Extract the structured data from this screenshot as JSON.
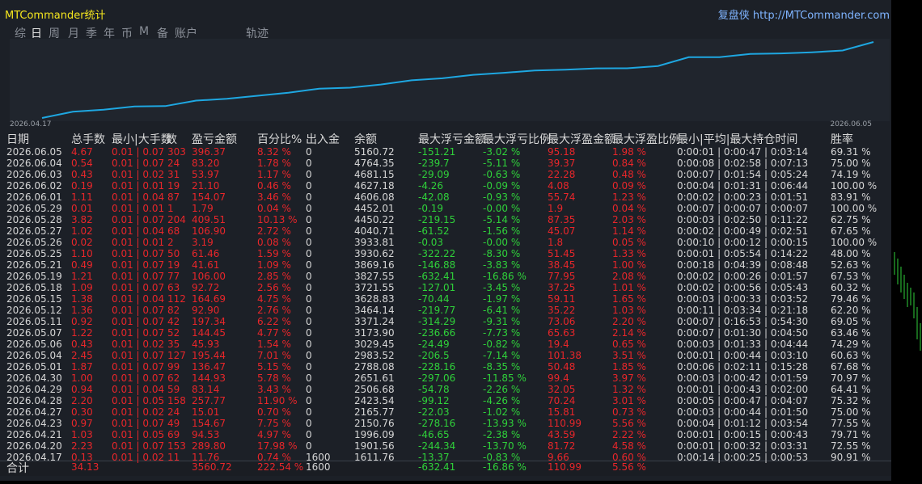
{
  "header": {
    "title": "MTCommander统计",
    "brand": "复盘侠 http://MTCommander.com",
    "tabs": [
      "综",
      "日",
      "周",
      "月",
      "季",
      "年",
      "币",
      "M",
      "备",
      "账户",
      "轨迹"
    ],
    "active_tab": 1
  },
  "curve": {
    "start_label": "2026.04.17",
    "end_label": "2026.06.05",
    "color": "#1ea7e1"
  },
  "table": {
    "columns": [
      "日期",
      "总手数",
      "最小|大手数",
      "数",
      "盈亏金额",
      "百分比%",
      "出入金",
      "余额",
      "最大浮亏金额",
      "最大浮亏比例",
      "最大浮盈金额",
      "最大浮盈比例",
      "最小|平均|最大持仓时间",
      "胜率"
    ],
    "rows": [
      [
        "2026.06.05",
        "4.67",
        "0.01 | 0.07",
        "303",
        "396.37",
        "8.32 %",
        "0",
        "5160.72",
        "-151.21",
        "-3.02 %",
        "95.18",
        "1.98 %",
        "0:00:01 | 0:00:47 | 0:03:14",
        "69.31 %"
      ],
      [
        "2026.06.04",
        "0.54",
        "0.01 | 0.07",
        "24",
        "83.20",
        "1.78 %",
        "0",
        "4764.35",
        "-239.7",
        "-5.11 %",
        "39.37",
        "0.84 %",
        "0:00:08 | 0:02:58 | 0:07:13",
        "75.00 %"
      ],
      [
        "2026.06.03",
        "0.43",
        "0.01 | 0.02",
        "31",
        "53.97",
        "1.17 %",
        "0",
        "4681.15",
        "-29.09",
        "-0.63 %",
        "22.28",
        "0.48 %",
        "0:00:07 | 0:01:54 | 0:05:24",
        "74.19 %"
      ],
      [
        "2026.06.02",
        "0.19",
        "0.01 | 0.01",
        "19",
        "21.10",
        "0.46 %",
        "0",
        "4627.18",
        "-4.26",
        "-0.09 %",
        "4.08",
        "0.09 %",
        "0:00:04 | 0:01:31 | 0:06:44",
        "100.00 %"
      ],
      [
        "2026.06.01",
        "1.11",
        "0.01 | 0.04",
        "87",
        "154.07",
        "3.46 %",
        "0",
        "4606.08",
        "-42.08",
        "-0.93 %",
        "55.74",
        "1.23 %",
        "0:00:02 | 0:00:23 | 0:01:51",
        "83.91 %"
      ],
      [
        "2026.05.29",
        "0.01",
        "0.01 | 0.01",
        "1",
        "1.79",
        "0.04 %",
        "0",
        "4452.01",
        "-0.19",
        "-0.00 %",
        "1.9",
        "0.04 %",
        "0:00:07 | 0:00:07 | 0:00:07",
        "100.00 %"
      ],
      [
        "2026.05.28",
        "3.82",
        "0.01 | 0.07",
        "204",
        "409.51",
        "10.13 %",
        "0",
        "4450.22",
        "-219.15",
        "-5.14 %",
        "87.35",
        "2.03 %",
        "0:00:03 | 0:02:50 | 0:11:22",
        "62.75 %"
      ],
      [
        "2026.05.27",
        "1.02",
        "0.01 | 0.04",
        "68",
        "106.90",
        "2.72 %",
        "0",
        "4040.71",
        "-61.52",
        "-1.56 %",
        "45.07",
        "1.14 %",
        "0:00:02 | 0:00:49 | 0:02:51",
        "67.65 %"
      ],
      [
        "2026.05.26",
        "0.02",
        "0.01 | 0.01",
        "2",
        "3.19",
        "0.08 %",
        "0",
        "3933.81",
        "-0.03",
        "-0.00 %",
        "1.8",
        "0.05 %",
        "0:00:10 | 0:00:12 | 0:00:15",
        "100.00 %"
      ],
      [
        "2026.05.25",
        "1.10",
        "0.01 | 0.07",
        "50",
        "61.46",
        "1.59 %",
        "0",
        "3930.62",
        "-322.22",
        "-8.30 %",
        "51.45",
        "1.33 %",
        "0:00:01 | 0:05:54 | 0:14:22",
        "48.00 %"
      ],
      [
        "2026.05.21",
        "0.49",
        "0.01 | 0.07",
        "19",
        "41.61",
        "1.09 %",
        "0",
        "3869.16",
        "-146.88",
        "-3.83 %",
        "38.45",
        "1.00 %",
        "0:00:18 | 0:04:39 | 0:08:48",
        "52.63 %"
      ],
      [
        "2026.05.19",
        "1.21",
        "0.01 | 0.07",
        "77",
        "106.00",
        "2.85 %",
        "0",
        "3827.55",
        "-632.41",
        "-16.86 %",
        "77.95",
        "2.08 %",
        "0:00:02 | 0:00:26 | 0:01:57",
        "67.53 %"
      ],
      [
        "2026.05.18",
        "1.09",
        "0.01 | 0.07",
        "63",
        "92.72",
        "2.56 %",
        "0",
        "3721.55",
        "-127.01",
        "-3.45 %",
        "37.25",
        "1.01 %",
        "0:00:02 | 0:00:56 | 0:05:43",
        "60.32 %"
      ],
      [
        "2026.05.15",
        "1.38",
        "0.01 | 0.04",
        "112",
        "164.69",
        "4.75 %",
        "0",
        "3628.83",
        "-70.44",
        "-1.97 %",
        "59.11",
        "1.65 %",
        "0:00:03 | 0:00:33 | 0:03:52",
        "79.46 %"
      ],
      [
        "2026.05.12",
        "1.36",
        "0.01 | 0.07",
        "82",
        "92.90",
        "2.76 %",
        "0",
        "3464.14",
        "-219.77",
        "-6.41 %",
        "35.22",
        "1.03 %",
        "0:00:11 | 0:03:34 | 0:21:18",
        "62.20 %"
      ],
      [
        "2026.05.11",
        "0.92",
        "0.01 | 0.07",
        "42",
        "197.34",
        "6.22 %",
        "0",
        "3371.24",
        "-314.29",
        "-9.31 %",
        "73.06",
        "2.20 %",
        "0:00:07 | 0:16:53 | 0:54:30",
        "69.05 %"
      ],
      [
        "2026.05.07",
        "1.22",
        "0.01 | 0.07",
        "52",
        "144.45",
        "4.77 %",
        "0",
        "3173.90",
        "-236.66",
        "-7.73 %",
        "65.63",
        "2.14 %",
        "0:00:07 | 0:01:30 | 0:04:50",
        "63.46 %"
      ],
      [
        "2026.05.06",
        "0.43",
        "0.01 | 0.02",
        "35",
        "45.93",
        "1.54 %",
        "0",
        "3029.45",
        "-24.49",
        "-0.82 %",
        "19.4",
        "0.65 %",
        "0:00:03 | 0:01:33 | 0:04:44",
        "74.29 %"
      ],
      [
        "2026.05.04",
        "2.45",
        "0.01 | 0.07",
        "127",
        "195.44",
        "7.01 %",
        "0",
        "2983.52",
        "-206.5",
        "-7.14 %",
        "101.38",
        "3.51 %",
        "0:00:01 | 0:00:44 | 0:03:10",
        "60.63 %"
      ],
      [
        "2026.05.01",
        "1.87",
        "0.01 | 0.07",
        "99",
        "136.47",
        "5.15 %",
        "0",
        "2788.08",
        "-228.16",
        "-8.35 %",
        "50.48",
        "1.85 %",
        "0:00:06 | 0:02:11 | 0:15:28",
        "67.68 %"
      ],
      [
        "2026.04.30",
        "1.00",
        "0.01 | 0.07",
        "62",
        "144.93",
        "5.78 %",
        "0",
        "2651.61",
        "-297.06",
        "-11.85 %",
        "99.4",
        "3.97 %",
        "0:00:03 | 0:00:42 | 0:01:59",
        "70.97 %"
      ],
      [
        "2026.04.29",
        "0.94",
        "0.01 | 0.04",
        "59",
        "83.14",
        "3.43 %",
        "0",
        "2506.68",
        "-54.78",
        "-2.26 %",
        "32.05",
        "1.32 %",
        "0:00:01 | 0:00:43 | 0:02:00",
        "64.41 %"
      ],
      [
        "2026.04.28",
        "2.20",
        "0.01 | 0.05",
        "158",
        "257.77",
        "11.90 %",
        "0",
        "2423.54",
        "-99.12",
        "-4.26 %",
        "70.24",
        "3.01 %",
        "0:00:05 | 0:00:47 | 0:04:07",
        "75.32 %"
      ],
      [
        "2026.04.27",
        "0.30",
        "0.01 | 0.02",
        "24",
        "15.01",
        "0.70 %",
        "0",
        "2165.77",
        "-22.03",
        "-1.02 %",
        "15.81",
        "0.73 %",
        "0:00:03 | 0:00:44 | 0:01:50",
        "75.00 %"
      ],
      [
        "2026.04.23",
        "0.97",
        "0.01 | 0.07",
        "49",
        "154.67",
        "7.75 %",
        "0",
        "2150.76",
        "-278.16",
        "-13.93 %",
        "110.99",
        "5.56 %",
        "0:00:04 | 0:01:12 | 0:03:54",
        "77.55 %"
      ],
      [
        "2026.04.21",
        "1.03",
        "0.01 | 0.05",
        "69",
        "94.53",
        "4.97 %",
        "0",
        "1996.09",
        "-46.65",
        "-2.38 %",
        "43.59",
        "2.22 %",
        "0:00:01 | 0:00:15 | 0:00:43",
        "79.71 %"
      ],
      [
        "2026.04.20",
        "2.23",
        "0.01 | 0.07",
        "153",
        "289.80",
        "17.98 %",
        "0",
        "1901.56",
        "-244.34",
        "-13.70 %",
        "81.72",
        "4.58 %",
        "0:00:01 | 0:00:32 | 0:03:31",
        "72.55 %"
      ],
      [
        "2026.04.17",
        "0.13",
        "0.01 | 0.02",
        "11",
        "11.76",
        "0.74 %",
        "1600",
        "1611.76",
        "-13.37",
        "-0.83 %",
        "9.66",
        "0.60 %",
        "0:00:14 | 0:00:25 | 0:00:53",
        "90.91 %"
      ]
    ],
    "total": {
      "label": "合计",
      "lots": "34.13",
      "pnl": "3560.72",
      "pct": "222.54 %",
      "inout": "1600",
      "max_loss": "-632.41",
      "max_loss_pct": "-16.86 %",
      "max_profit": "110.99",
      "max_profit_pct": "5.56 %"
    }
  }
}
